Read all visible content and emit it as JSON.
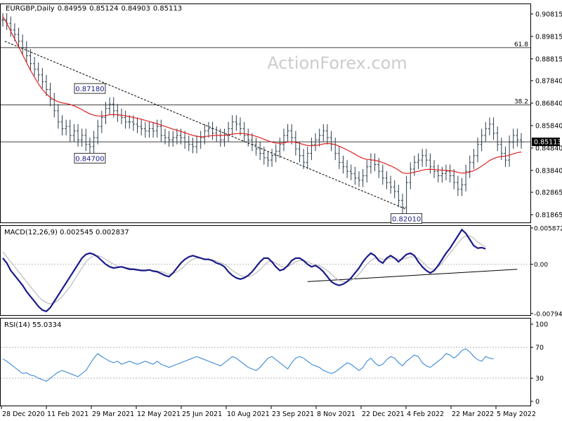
{
  "chart_data": {
    "type": "line",
    "symbol": "EURGBP",
    "timeframe": "Daily",
    "ohlc": [
      "0.84959",
      "0.85124",
      "0.84903",
      "0.85113"
    ],
    "watermark": "ActionForex.com",
    "x_labels": [
      "28 Dec 2020",
      "11 Feb 2021",
      "29 Mar 2021",
      "12 May 2021",
      "25 Jun 2021",
      "10 Aug 2021",
      "23 Sep 2021",
      "8 Nov 2021",
      "22 Dec 2021",
      "4 Feb 2022",
      "22 Mar 2022",
      "5 May 2022"
    ],
    "price": {
      "y_ticks": [
        "0.90815",
        "0.89815",
        "0.88815",
        "0.87840",
        "0.86840",
        "0.85840",
        "0.84840",
        "0.83840",
        "0.82865",
        "0.81865"
      ],
      "ylim": [
        0.8152,
        0.9125
      ],
      "last_price": "0.85113",
      "last_value": 0.85113,
      "close": [
        0.9055,
        0.904,
        0.901,
        0.899,
        0.896,
        0.893,
        0.8895,
        0.886,
        0.8835,
        0.881,
        0.878,
        0.8745,
        0.87,
        0.865,
        0.86,
        0.857,
        0.858,
        0.854,
        0.856,
        0.852,
        0.854,
        0.85,
        0.849,
        0.853,
        0.858,
        0.862,
        0.866,
        0.868,
        0.865,
        0.863,
        0.862,
        0.86,
        0.86,
        0.859,
        0.858,
        0.857,
        0.856,
        0.857,
        0.856,
        0.858,
        0.854,
        0.853,
        0.852,
        0.853,
        0.854,
        0.853,
        0.851,
        0.85,
        0.849,
        0.851,
        0.853,
        0.856,
        0.857,
        0.855,
        0.854,
        0.852,
        0.854,
        0.857,
        0.86,
        0.859,
        0.857,
        0.854,
        0.852,
        0.85,
        0.848,
        0.846,
        0.844,
        0.843,
        0.845,
        0.847,
        0.85,
        0.854,
        0.856,
        0.853,
        0.848,
        0.845,
        0.842,
        0.846,
        0.85,
        0.852,
        0.854,
        0.856,
        0.853,
        0.85,
        0.846,
        0.842,
        0.84,
        0.838,
        0.837,
        0.835,
        0.834,
        0.836,
        0.84,
        0.843,
        0.841,
        0.838,
        0.835,
        0.833,
        0.831,
        0.829,
        0.825,
        0.822,
        0.833,
        0.839,
        0.842,
        0.843,
        0.845,
        0.843,
        0.84,
        0.838,
        0.836,
        0.837,
        0.838,
        0.836,
        0.833,
        0.83,
        0.832,
        0.838,
        0.842,
        0.845,
        0.85,
        0.854,
        0.857,
        0.859,
        0.855,
        0.85,
        0.846,
        0.843,
        0.851,
        0.854,
        0.852,
        0.8511
      ],
      "ma": [
        0.907,
        0.904,
        0.9005,
        0.897,
        0.8935,
        0.89,
        0.8865,
        0.883,
        0.88,
        0.877,
        0.8745,
        0.8725,
        0.871,
        0.8698,
        0.869,
        0.8685,
        0.8682,
        0.8678,
        0.8672,
        0.8664,
        0.8655,
        0.8645,
        0.8636,
        0.863,
        0.8627,
        0.8626,
        0.8628,
        0.8632,
        0.8633,
        0.8632,
        0.863,
        0.8627,
        0.8624,
        0.862,
        0.8616,
        0.8612,
        0.8607,
        0.8602,
        0.8597,
        0.8592,
        0.8586,
        0.858,
        0.8574,
        0.8568,
        0.8563,
        0.8558,
        0.8552,
        0.8546,
        0.854,
        0.8536,
        0.8534,
        0.8535,
        0.8537,
        0.8539,
        0.854,
        0.854,
        0.8541,
        0.8543,
        0.8546,
        0.8548,
        0.8549,
        0.8548,
        0.8545,
        0.8541,
        0.8536,
        0.853,
        0.8523,
        0.8516,
        0.851,
        0.8506,
        0.8505,
        0.8507,
        0.851,
        0.8511,
        0.8509,
        0.8505,
        0.8499,
        0.8495,
        0.8494,
        0.8495,
        0.8498,
        0.8502,
        0.8504,
        0.8503,
        0.8499,
        0.8492,
        0.8484,
        0.8475,
        0.8466,
        0.8456,
        0.8446,
        0.8438,
        0.8433,
        0.8431,
        0.8429,
        0.8425,
        0.8419,
        0.8412,
        0.8404,
        0.8396,
        0.8385,
        0.8373,
        0.837,
        0.8372,
        0.8376,
        0.838,
        0.8385,
        0.8388,
        0.8389,
        0.8388,
        0.8386,
        0.8385,
        0.8384,
        0.8383,
        0.838,
        0.8375,
        0.8372,
        0.8373,
        0.8377,
        0.8383,
        0.8392,
        0.8403,
        0.8415,
        0.8428,
        0.8437,
        0.8443,
        0.8446,
        0.8447,
        0.8452,
        0.8458,
        0.8463,
        0.8466
      ],
      "hlines": [
        {
          "value": 0.89315,
          "label": "61.8"
        },
        {
          "value": 0.8676,
          "label": "38.2"
        },
        {
          "value": 0.85113,
          "label": ""
        }
      ],
      "trendline": {
        "from": [
          0.5,
          0.896
        ],
        "to": [
          102,
          0.821
        ]
      },
      "annotations": [
        {
          "text": "0.87180",
          "at": [
            22,
            0.8718
          ],
          "place": "above"
        },
        {
          "text": "0.84700",
          "at": [
            22,
            0.847
          ],
          "place": "below"
        },
        {
          "text": "0.82010",
          "at": [
            102,
            0.8201
          ],
          "place": "below"
        }
      ]
    },
    "macd": {
      "label": "MACD(12,26,9) 0.002545 0.002837",
      "y_ticks": [
        "0.005872",
        "0.00",
        "-0.007945"
      ],
      "tick_values": [
        0.005872,
        0.0,
        -0.007945
      ],
      "ylim": [
        -0.0082,
        0.0062
      ],
      "main": [
        0.001,
        0.0002,
        -0.001,
        -0.0018,
        -0.0026,
        -0.0034,
        -0.0044,
        -0.0052,
        -0.006,
        -0.0068,
        -0.0074,
        -0.0076,
        -0.007,
        -0.006,
        -0.005,
        -0.004,
        -0.003,
        -0.002,
        -0.001,
        0.0,
        0.001,
        0.0016,
        0.0018,
        0.0016,
        0.0012,
        0.0006,
        0.0,
        -0.0004,
        -0.0006,
        -0.0005,
        -0.0004,
        -0.0006,
        -0.0008,
        -0.0008,
        -0.0009,
        -0.001,
        -0.001,
        -0.0009,
        -0.0011,
        -0.0012,
        -0.0015,
        -0.0018,
        -0.002,
        -0.0014,
        -0.0006,
        0.0002,
        0.0008,
        0.0012,
        0.0014,
        0.0012,
        0.001,
        0.0008,
        0.0008,
        0.0006,
        0.0002,
        0.0,
        -0.0004,
        -0.0012,
        -0.0018,
        -0.0022,
        -0.0024,
        -0.0022,
        -0.0018,
        -0.0012,
        -0.0004,
        0.0004,
        0.001,
        0.001,
        0.0004,
        -0.0004,
        -0.001,
        -0.0008,
        -0.0002,
        0.0006,
        0.001,
        0.001,
        0.0006,
        0.0,
        -0.0004,
        -0.0002,
        -0.0006,
        -0.0012,
        -0.002,
        -0.0028,
        -0.0032,
        -0.0034,
        -0.0032,
        -0.0028,
        -0.0022,
        -0.0014,
        -0.0006,
        0.0004,
        0.0012,
        0.0018,
        0.0014,
        0.0006,
        0.0002,
        0.001,
        0.0014,
        0.001,
        0.0004,
        0.001,
        0.0016,
        0.0018,
        0.0014,
        0.0004,
        -0.0004,
        -0.001,
        -0.0014,
        -0.001,
        -0.0002,
        0.0008,
        0.0018,
        0.0026,
        0.0036,
        0.0046,
        0.0056,
        0.005,
        0.004,
        0.003,
        0.0026,
        0.0027,
        0.0025
      ],
      "signal": [
        0.002,
        0.0012,
        0.0004,
        -0.0004,
        -0.0012,
        -0.002,
        -0.0028,
        -0.0036,
        -0.0044,
        -0.0052,
        -0.0058,
        -0.0062,
        -0.0064,
        -0.0062,
        -0.0058,
        -0.0052,
        -0.0044,
        -0.0036,
        -0.0026,
        -0.0016,
        -0.0006,
        0.0004,
        0.001,
        0.0014,
        0.0014,
        0.0012,
        0.0008,
        0.0004,
        0.0,
        -0.0003,
        -0.0004,
        -0.0005,
        -0.0006,
        -0.0007,
        -0.0008,
        -0.0009,
        -0.0009,
        -0.0009,
        -0.001,
        -0.0011,
        -0.0012,
        -0.0014,
        -0.0016,
        -0.0015,
        -0.0012,
        -0.0008,
        -0.0002,
        0.0004,
        0.0008,
        0.001,
        0.001,
        0.0009,
        0.0008,
        0.0007,
        0.0005,
        0.0003,
        0.0,
        -0.0004,
        -0.001,
        -0.0014,
        -0.0018,
        -0.002,
        -0.002,
        -0.0018,
        -0.0014,
        -0.0008,
        -0.0002,
        0.0004,
        0.0005,
        0.0002,
        -0.0002,
        -0.0005,
        -0.0004,
        0.0,
        0.0004,
        0.0006,
        0.0006,
        0.0004,
        0.0001,
        -0.0001,
        -0.0002,
        -0.0006,
        -0.001,
        -0.0016,
        -0.0022,
        -0.0026,
        -0.0028,
        -0.0028,
        -0.0026,
        -0.0022,
        -0.0016,
        -0.0008,
        0.0,
        0.0006,
        0.001,
        0.001,
        0.0008,
        0.0008,
        0.001,
        0.001,
        0.0008,
        0.0008,
        0.001,
        0.0012,
        0.0012,
        0.001,
        0.0004,
        -0.0002,
        -0.0008,
        -0.0008,
        -0.0004,
        0.0002,
        0.001,
        0.0018,
        0.0026,
        0.0034,
        0.0042,
        0.0046,
        0.0046,
        0.0042,
        0.0036,
        0.0032,
        0.0028
      ],
      "trendline": {
        "from": [
          77,
          -0.0028
        ],
        "to": [
          130,
          -0.0008
        ]
      }
    },
    "rsi": {
      "label": "RSI(14) 55.0334",
      "y_ticks": [
        "100",
        "70",
        "30",
        "0"
      ],
      "tick_values": [
        100,
        70,
        30,
        0
      ],
      "ylim": [
        0,
        100
      ],
      "levels": [
        70,
        30
      ],
      "values": [
        55,
        52,
        48,
        44,
        40,
        36,
        37,
        34,
        33,
        30,
        28,
        26,
        30,
        34,
        38,
        40,
        38,
        36,
        34,
        32,
        36,
        40,
        48,
        56,
        62,
        58,
        55,
        52,
        50,
        52,
        48,
        50,
        52,
        50,
        48,
        50,
        52,
        50,
        48,
        52,
        48,
        46,
        44,
        46,
        48,
        50,
        52,
        54,
        56,
        58,
        56,
        54,
        52,
        50,
        48,
        46,
        50,
        54,
        58,
        56,
        52,
        48,
        44,
        42,
        40,
        44,
        50,
        56,
        58,
        54,
        50,
        46,
        42,
        50,
        56,
        58,
        56,
        52,
        48,
        46,
        44,
        40,
        38,
        36,
        38,
        42,
        46,
        50,
        48,
        44,
        40,
        44,
        52,
        56,
        50,
        46,
        48,
        54,
        58,
        56,
        50,
        46,
        52,
        56,
        60,
        58,
        50,
        46,
        44,
        48,
        52,
        56,
        62,
        60,
        56,
        60,
        66,
        68,
        64,
        58,
        54,
        52,
        58,
        56,
        55
      ]
    }
  }
}
